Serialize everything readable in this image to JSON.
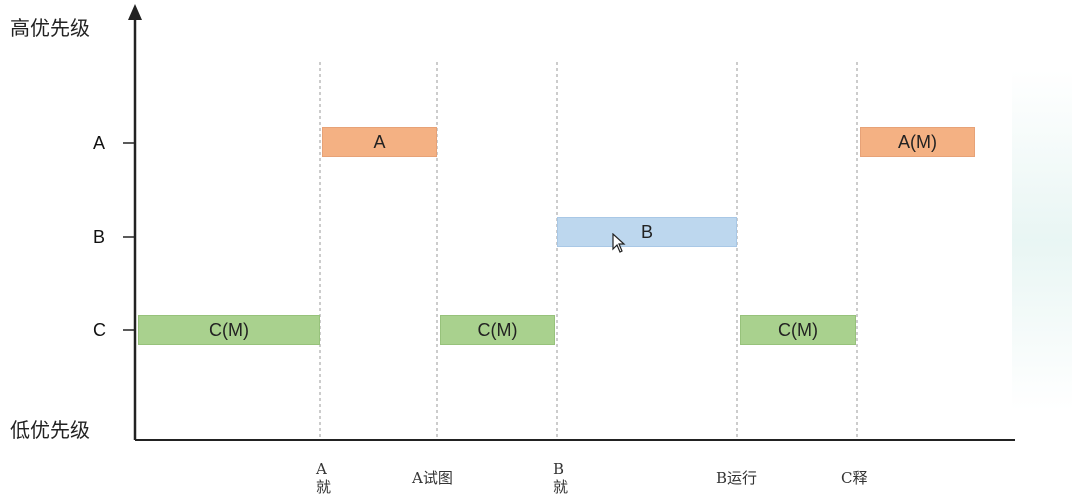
{
  "axis": {
    "top_label": "高优先级",
    "bottom_label": "低优先级"
  },
  "levels": [
    {
      "id": "A",
      "label": "A"
    },
    {
      "id": "B",
      "label": "B"
    },
    {
      "id": "C",
      "label": "C"
    }
  ],
  "events": [
    {
      "line1": "A",
      "line2": "就"
    },
    {
      "line1": "A试图",
      "line2": ""
    },
    {
      "line1": "B",
      "line2": "就"
    },
    {
      "line1": "B运行",
      "line2": ""
    },
    {
      "line1": "C释",
      "line2": ""
    }
  ],
  "bars": [
    {
      "level": "C",
      "label": "C(M)"
    },
    {
      "level": "A",
      "label": "A"
    },
    {
      "level": "C",
      "label": "C(M)"
    },
    {
      "level": "B",
      "label": "B"
    },
    {
      "level": "C",
      "label": "C(M)"
    },
    {
      "level": "A",
      "label": "A(M)"
    }
  ],
  "colors": {
    "A": "#f4b183",
    "B": "#bdd7ee",
    "C": "#a9d18e",
    "axis": "#222222",
    "guide": "#9a9a9a"
  },
  "icons": [
    "mouse-cursor-icon"
  ]
}
